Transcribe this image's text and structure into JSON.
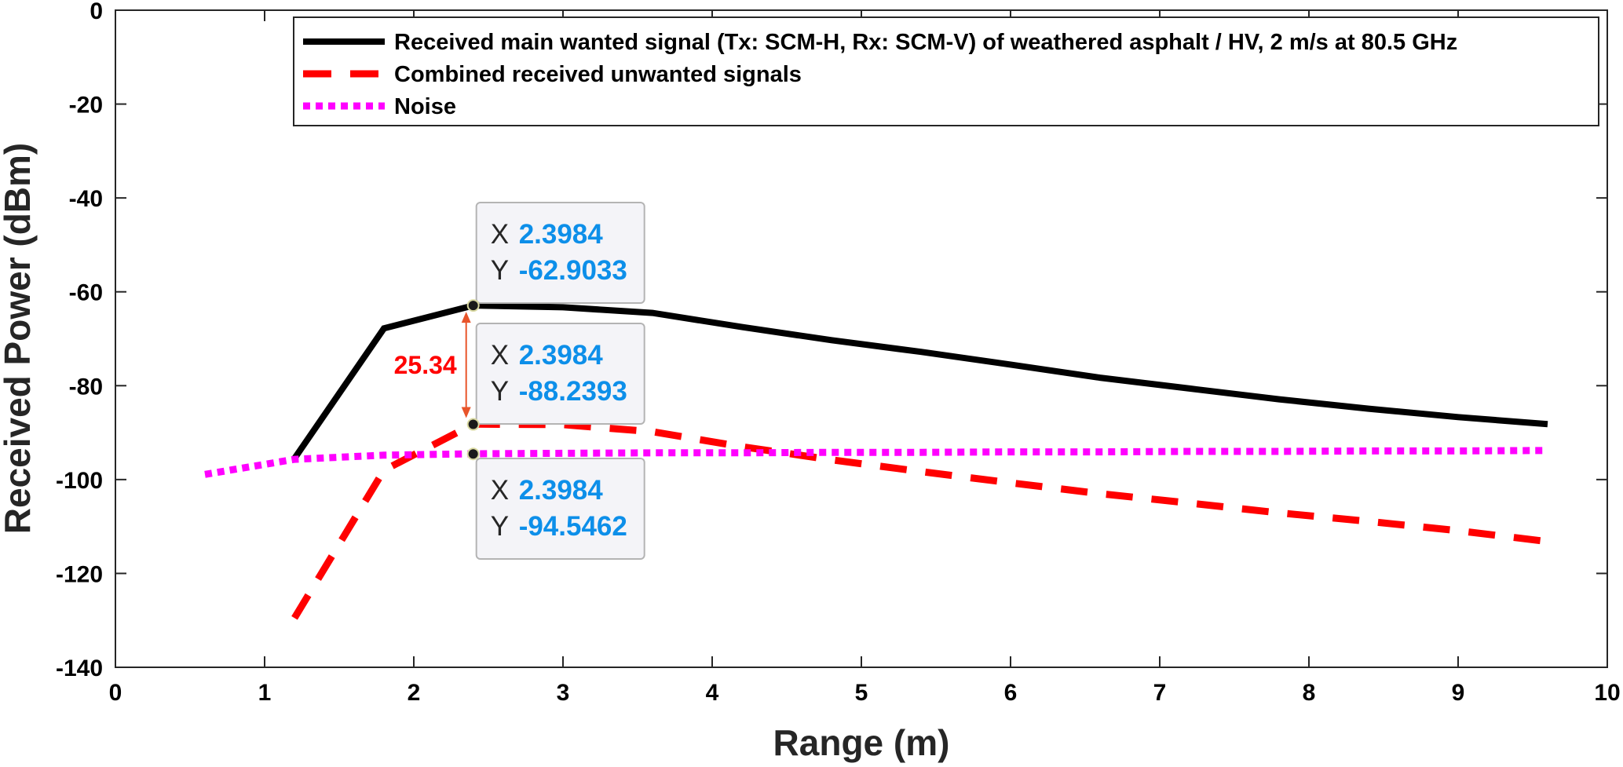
{
  "chart_data": {
    "type": "line",
    "xlabel": "Range (m)",
    "ylabel": "Received Power (dBm)",
    "xlim": [
      0,
      10
    ],
    "ylim": [
      -140,
      0
    ],
    "xticks": [
      0,
      1,
      2,
      3,
      4,
      5,
      6,
      7,
      8,
      9,
      10
    ],
    "yticks": [
      0,
      -20,
      -40,
      -60,
      -80,
      -100,
      -120,
      -140
    ],
    "grid": false,
    "legend_position": "top-right",
    "series": [
      {
        "name": "Received main wanted signal (Tx: SCM-H, Rx: SCM-V) of weathered asphalt / HV, 2 m/s at 80.5 GHz",
        "color": "#000000",
        "style": "solid",
        "x": [
          1.2,
          1.8,
          2.4,
          3.0,
          3.6,
          4.2,
          4.8,
          5.4,
          6.0,
          6.6,
          7.2,
          7.8,
          8.4,
          9.0,
          9.6
        ],
        "y": [
          -95.5,
          -67.8,
          -62.9,
          -63.3,
          -64.5,
          -67.5,
          -70.3,
          -72.8,
          -75.5,
          -78.3,
          -80.6,
          -82.9,
          -84.9,
          -86.7,
          -88.2
        ]
      },
      {
        "name": "Combined received unwanted signals",
        "color": "#ff0000",
        "style": "dashed",
        "x": [
          1.2,
          1.8,
          2.4,
          3.0,
          3.6,
          4.2,
          4.8,
          5.4,
          6.0,
          6.6,
          7.2,
          7.8,
          8.4,
          9.0,
          9.6
        ],
        "y": [
          -129.5,
          -98.0,
          -88.2,
          -88.3,
          -89.8,
          -93.0,
          -95.8,
          -98.3,
          -100.7,
          -103.0,
          -105.0,
          -107.1,
          -108.9,
          -110.9,
          -113.2
        ]
      },
      {
        "name": "Noise",
        "color": "#ff00ff",
        "style": "dotted",
        "x": [
          0.6,
          1.2,
          1.8,
          2.4,
          3.0,
          3.6,
          4.2,
          4.8,
          5.4,
          6.0,
          6.6,
          7.2,
          7.8,
          8.4,
          9.0,
          9.6
        ],
        "y": [
          -98.9,
          -95.7,
          -94.8,
          -94.5,
          -94.4,
          -94.3,
          -94.3,
          -94.2,
          -94.2,
          -94.1,
          -94.1,
          -94.0,
          -94.0,
          -93.9,
          -93.9,
          -93.8
        ]
      }
    ],
    "datatips": [
      {
        "x_key": "X",
        "x_value": "2.3984",
        "y_key": "Y",
        "y_value": "-62.9033",
        "x": 2.3984,
        "y": -62.9033
      },
      {
        "x_key": "X",
        "x_value": "2.3984",
        "y_key": "Y",
        "y_value": "-88.2393",
        "x": 2.3984,
        "y": -88.2393
      },
      {
        "x_key": "X",
        "x_value": "2.3984",
        "y_key": "Y",
        "y_value": "-94.5462",
        "x": 2.3984,
        "y": -94.5462
      }
    ],
    "annotation": {
      "text": "25.34",
      "x": 2.3984,
      "from": -62.9033,
      "to": -88.2393,
      "color": "#ff0000",
      "arrow_color": "#e8542a"
    }
  }
}
